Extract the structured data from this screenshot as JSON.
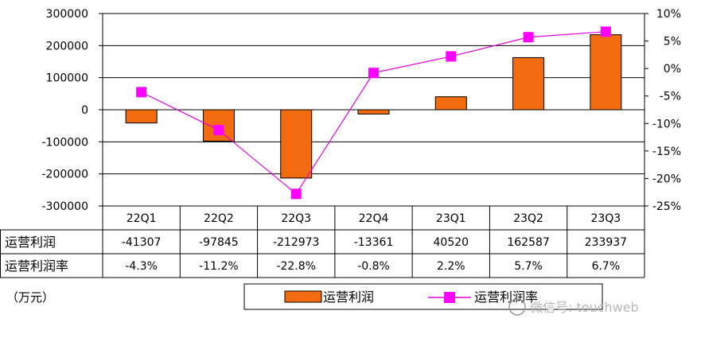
{
  "chart_data": {
    "type": "bar+line",
    "categories": [
      "22Q1",
      "22Q2",
      "22Q3",
      "22Q4",
      "23Q1",
      "23Q2",
      "23Q3"
    ],
    "series": [
      {
        "name": "运营利润",
        "type": "bar",
        "axis": "left",
        "color": "#f26b0f",
        "values": [
          -41307,
          -97845,
          -212973,
          -13361,
          40520,
          162587,
          233937
        ]
      },
      {
        "name": "运营利润率",
        "type": "line",
        "axis": "right",
        "color": "#e000e0",
        "values": [
          -4.3,
          -11.2,
          -22.8,
          -0.8,
          2.2,
          5.7,
          6.7
        ]
      }
    ],
    "left_axis": {
      "ylim": [
        -300000,
        300000
      ],
      "ticks": [
        300000,
        200000,
        100000,
        0,
        -100000,
        -200000,
        -300000
      ],
      "tick_labels": [
        "300000",
        "200000",
        "100000",
        "0",
        "-100000",
        "-200000",
        "-300000"
      ]
    },
    "right_axis": {
      "ylim": [
        -25,
        10
      ],
      "ticks": [
        10,
        5,
        0,
        -5,
        -10,
        -15,
        -20,
        -25
      ],
      "tick_labels": [
        "10%",
        "5%",
        "0%",
        "-5%",
        "-10%",
        "-15%",
        "-20%",
        "-25%"
      ]
    },
    "grid": true,
    "table": {
      "row_labels": [
        "运营利润",
        "运营利润率"
      ],
      "rows": [
        [
          "-41307",
          "-97845",
          "-212973",
          "-13361",
          "40520",
          "162587",
          "233937"
        ],
        [
          "-4.3%",
          "-11.2%",
          "-22.8%",
          "-0.8%",
          "2.2%",
          "5.7%",
          "6.7%"
        ]
      ]
    },
    "unit_label": "（万元）",
    "legend": {
      "position": "bottom",
      "entries": [
        "运营利润",
        "运营利润率"
      ]
    }
  },
  "watermark": "微信号: touchweb"
}
